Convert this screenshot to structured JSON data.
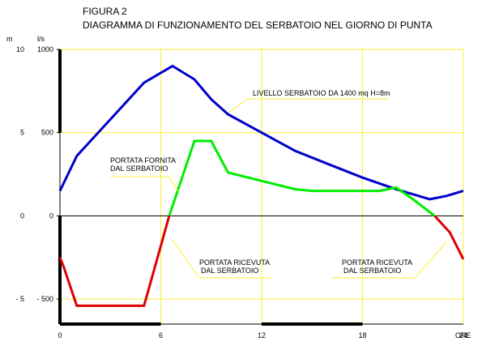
{
  "title": "FIGURA 2",
  "subtitle": "DIAGRAMMA DI FUNZIONAMENTO DEL SERBATOIO NEL GIORNO DI PUNTA",
  "chart_data": {
    "type": "line",
    "x_unit_label": "ORE",
    "y_left_unit": "m",
    "y_right_unit": "l/s",
    "xlim": [
      0,
      24
    ],
    "ylim_left": [
      -6.5,
      10
    ],
    "ylim_right": [
      -650,
      1000
    ],
    "x_ticks": [
      "0",
      "6",
      "12",
      "18",
      "24"
    ],
    "y_left_ticks": [
      "10",
      "5",
      "0",
      "- 5"
    ],
    "y_right_ticks": [
      "1000",
      "500",
      "0",
      "- 500"
    ],
    "grid": true,
    "series": [
      {
        "key": "livello",
        "color": "#0000cc",
        "axis": "left",
        "x": [
          0,
          1,
          5,
          6.7,
          8,
          9,
          10,
          12,
          14,
          16,
          18,
          20,
          22,
          23,
          24
        ],
        "y": [
          1.5,
          3.6,
          8.0,
          9.0,
          8.2,
          7.0,
          6.1,
          5.0,
          3.9,
          3.1,
          2.3,
          1.6,
          1.0,
          1.2,
          1.5
        ]
      },
      {
        "key": "portata_fornita",
        "color": "#00ee00",
        "axis": "right",
        "x": [
          6.5,
          8,
          9,
          10,
          12,
          14,
          15,
          18,
          19,
          20,
          21,
          22.3
        ],
        "y": [
          0,
          450,
          450,
          260,
          210,
          160,
          150,
          150,
          150,
          170,
          100,
          0
        ]
      },
      {
        "key": "portata_ricevuta_1",
        "color": "#dd0000",
        "axis": "right",
        "x": [
          0,
          0.2,
          1,
          5,
          6.5
        ],
        "y": [
          -250,
          -300,
          -540,
          -540,
          0
        ]
      },
      {
        "key": "portata_ricevuta_2",
        "color": "#dd0000",
        "axis": "right",
        "x": [
          22.3,
          23.2,
          24
        ],
        "y": [
          0,
          -100,
          -260
        ]
      }
    ],
    "annotations": [
      {
        "lines": [
          "LIVELLO SERBATOIO DA 1400 mq H=8m"
        ]
      },
      {
        "lines": [
          "PORTATA FORNITA",
          "DAL SERBATOIO"
        ]
      },
      {
        "lines": [
          "PORTATA RICEVUTA",
          "DAL SERBATOIO"
        ]
      },
      {
        "lines": [
          "PORTATA RICEVUTA",
          "DAL SERBATOIO"
        ]
      }
    ]
  }
}
